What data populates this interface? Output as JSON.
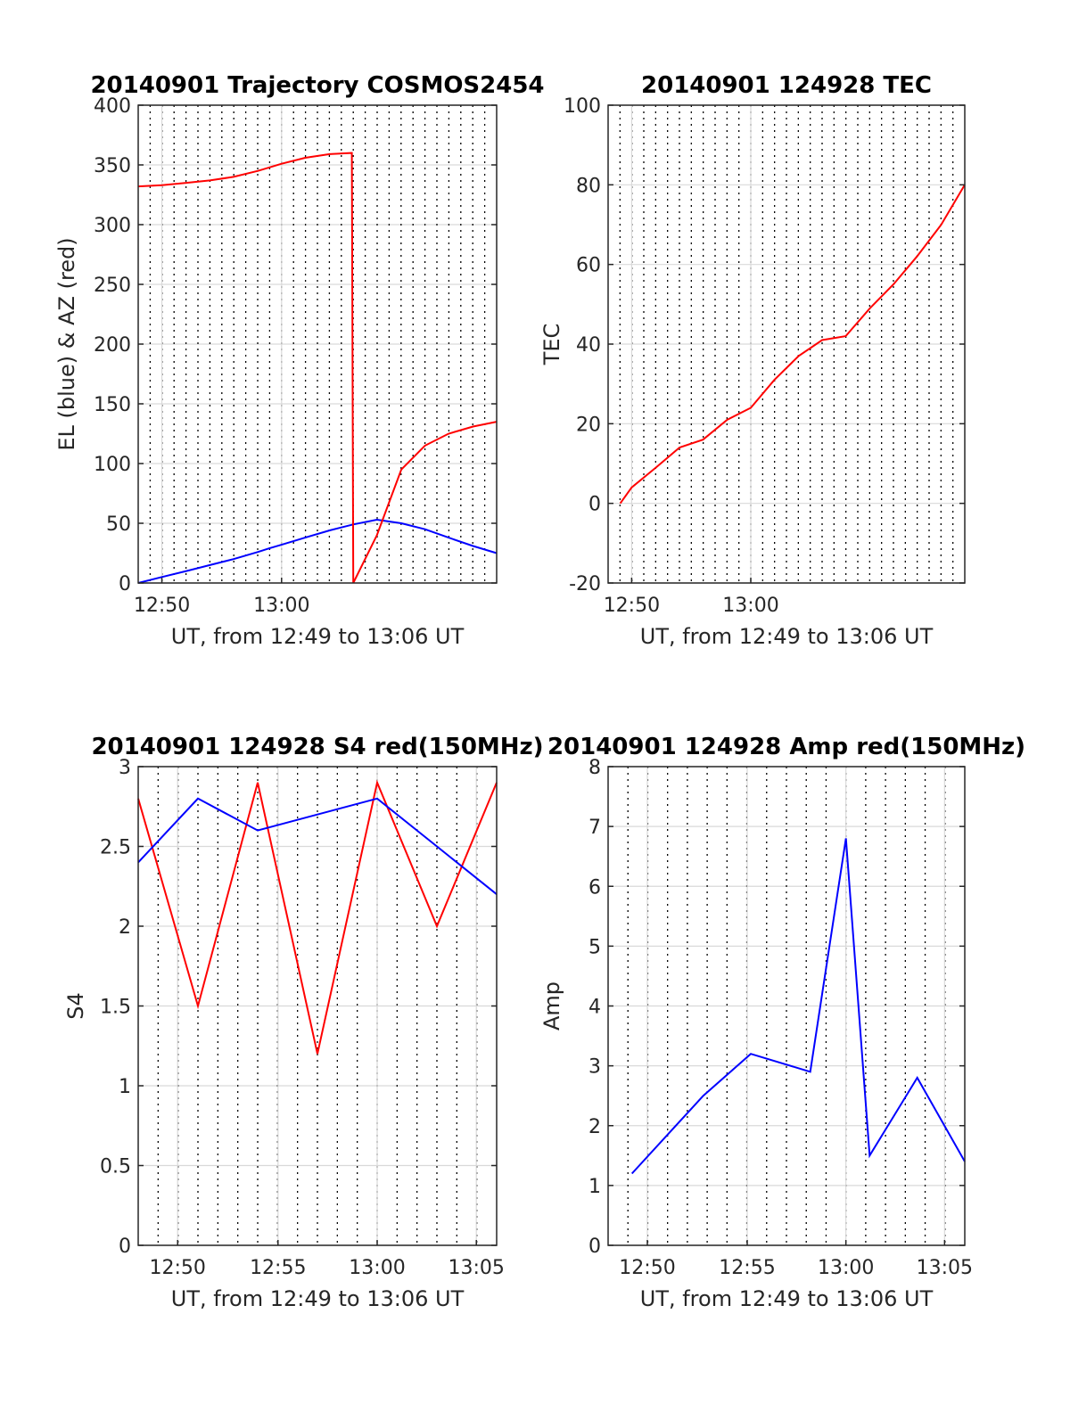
{
  "colors": {
    "red": "#ff0000",
    "blue": "#0000ff",
    "axis": "#262626",
    "grid": "#d9d9d9",
    "vgrid": "#000000"
  },
  "chart_data": [
    {
      "id": "traj",
      "type": "line",
      "title": "20140901 Trajectory COSMOS2454",
      "xlabel": "UT, from 12:49 to 13:06 UT",
      "ylabel": "EL (blue) & AZ (red)",
      "xlim": [
        12.8,
        13.3
      ],
      "ylim": [
        0,
        400
      ],
      "yticks": [
        0,
        50,
        100,
        150,
        200,
        250,
        300,
        350,
        400
      ],
      "ytick_labels": [
        "0",
        "50",
        "100",
        "150",
        "200",
        "250",
        "300",
        "350",
        "400"
      ],
      "xticks": [
        12.833,
        13.0
      ],
      "xtick_labels": [
        "12:50",
        "13:00"
      ],
      "grid": true,
      "series": [
        {
          "color": "#0000ff",
          "x": [
            12.8,
            12.833,
            12.867,
            12.9,
            12.933,
            12.967,
            12.983,
            13.0,
            13.033,
            13.067,
            13.1,
            13.133,
            13.167,
            13.2,
            13.233,
            13.267,
            13.3
          ],
          "y": [
            0,
            5,
            10,
            15,
            20,
            26,
            29,
            32,
            38,
            44,
            49,
            53,
            50,
            45,
            38,
            31,
            25
          ]
        },
        {
          "color": "#ff0000",
          "x": [
            12.8,
            12.833,
            12.867,
            12.9,
            12.933,
            12.967,
            13.0,
            13.033,
            13.067,
            13.098,
            13.1,
            13.133,
            13.167,
            13.2,
            13.233,
            13.267,
            13.3
          ],
          "y": [
            332,
            333,
            335,
            337,
            340,
            345,
            351,
            356,
            359,
            360,
            0,
            40,
            95,
            115,
            125,
            131,
            135
          ]
        }
      ]
    },
    {
      "id": "tec",
      "type": "line",
      "title": "20140901 124928 TEC",
      "xlabel": "UT, from 12:49 to 13:06 UT",
      "ylabel": "TEC",
      "xlim": [
        12.8,
        13.3
      ],
      "ylim": [
        -20,
        100
      ],
      "yticks": [
        -20,
        0,
        20,
        40,
        60,
        80,
        100
      ],
      "ytick_labels": [
        "-20",
        "0",
        "20",
        "40",
        "60",
        "80",
        "100"
      ],
      "xticks": [
        12.833,
        13.0
      ],
      "xtick_labels": [
        "12:50",
        "13:00"
      ],
      "grid": true,
      "series": [
        {
          "color": "#ff0000",
          "x": [
            12.817,
            12.833,
            12.867,
            12.9,
            12.933,
            12.967,
            13.0,
            13.033,
            13.067,
            13.1,
            13.133,
            13.167,
            13.2,
            13.233,
            13.267,
            13.3
          ],
          "y": [
            0,
            4,
            9,
            14,
            16,
            21,
            24,
            31,
            37,
            41,
            42,
            49,
            55,
            62,
            70,
            80
          ]
        }
      ]
    },
    {
      "id": "s4",
      "type": "line",
      "title": "20140901 124928 S4 red(150MHz)",
      "xlabel": "UT, from 12:49 to 13:06 UT",
      "ylabel": "S4",
      "xlim": [
        12.8,
        13.1
      ],
      "ylim": [
        0,
        3
      ],
      "yticks": [
        0,
        0.5,
        1,
        1.5,
        2,
        2.5,
        3
      ],
      "ytick_labels": [
        "0",
        "0.5",
        "1",
        "1.5",
        "2",
        "2.5",
        "3"
      ],
      "xticks": [
        12.833,
        12.917,
        13.0,
        13.083
      ],
      "xtick_labels": [
        "12:50",
        "12:55",
        "13:00",
        "13:05"
      ],
      "grid": true,
      "series": [
        {
          "color": "#ff0000",
          "x": [
            12.8,
            12.85,
            12.9,
            12.95,
            13.0,
            13.05,
            13.1
          ],
          "y": [
            2.8,
            1.5,
            2.9,
            1.2,
            2.9,
            2.0,
            2.9
          ]
        },
        {
          "color": "#0000ff",
          "x": [
            12.8,
            12.85,
            12.9,
            12.95,
            13.0,
            13.05,
            13.1
          ],
          "y": [
            2.4,
            2.8,
            2.6,
            2.7,
            2.8,
            2.5,
            2.2
          ]
        }
      ]
    },
    {
      "id": "amp",
      "type": "line",
      "title": "20140901 124928 Amp red(150MHz)",
      "xlabel": "UT, from 12:49 to 13:06 UT",
      "ylabel": "Amp",
      "xlim": [
        12.8,
        13.1
      ],
      "ylim": [
        0,
        8
      ],
      "yticks": [
        0,
        1,
        2,
        3,
        4,
        5,
        6,
        7,
        8
      ],
      "ytick_labels": [
        "0",
        "1",
        "2",
        "3",
        "4",
        "5",
        "6",
        "7",
        "8"
      ],
      "xticks": [
        12.833,
        12.917,
        13.0,
        13.083
      ],
      "xtick_labels": [
        "12:50",
        "12:55",
        "13:00",
        "13:05"
      ],
      "grid": true,
      "series": [
        {
          "color": "#0000ff",
          "x": [
            12.82,
            12.88,
            12.92,
            12.97,
            13.0,
            13.02,
            13.06,
            13.1
          ],
          "y": [
            1.2,
            2.5,
            3.2,
            2.9,
            6.8,
            1.5,
            2.8,
            1.4
          ]
        }
      ]
    }
  ]
}
